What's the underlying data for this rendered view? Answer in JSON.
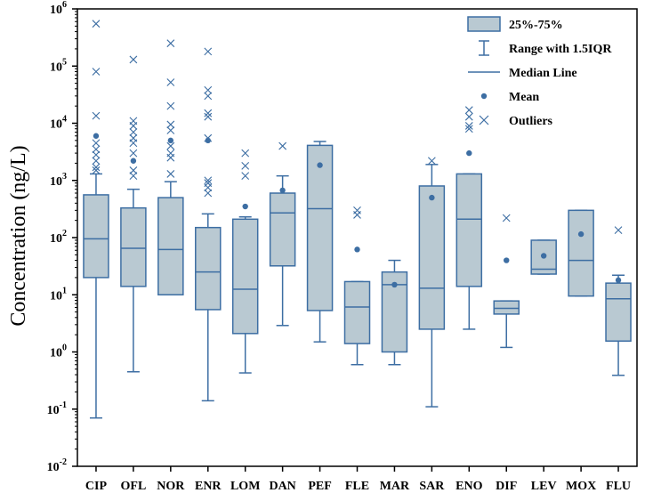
{
  "chart_data": {
    "type": "boxplot",
    "title": "",
    "xlabel": "",
    "ylabel": "Concentration (ng/L)",
    "yscale": "log",
    "ylim": [
      0.01,
      1000000
    ],
    "ytick_base": "10",
    "ytick_exponents": [
      "-2",
      "-1",
      "0",
      "1",
      "2",
      "3",
      "4",
      "5",
      "6"
    ],
    "categories": [
      "CIP",
      "OFL",
      "NOR",
      "ENR",
      "LOM",
      "DAN",
      "PEF",
      "FLE",
      "MAR",
      "SAR",
      "ENO",
      "DIF",
      "LEV",
      "MOX",
      "FLU"
    ],
    "boxes": [
      {
        "name": "CIP",
        "q1": 20,
        "median": 95,
        "q3": 560,
        "whisker_low": 0.07,
        "whisker_high": 1300,
        "mean": 6000,
        "outliers": [
          550000,
          80000,
          13500,
          4500,
          3500,
          2800,
          2200,
          1700,
          1500
        ]
      },
      {
        "name": "OFL",
        "q1": 14,
        "median": 65,
        "q3": 330,
        "whisker_low": 0.45,
        "whisker_high": 700,
        "mean": 2200,
        "outliers": [
          130000,
          11000,
          9000,
          7000,
          5500,
          4500,
          3000,
          1500,
          1200
        ]
      },
      {
        "name": "NOR",
        "q1": 10,
        "median": 62,
        "q3": 500,
        "whisker_low": 10,
        "whisker_high": 950,
        "mean": 5000,
        "outliers": [
          250000,
          52000,
          20000,
          9500,
          7500,
          4000,
          3000,
          2500,
          1300
        ]
      },
      {
        "name": "ENR",
        "q1": 5.5,
        "median": 25,
        "q3": 150,
        "whisker_low": 0.14,
        "whisker_high": 260,
        "mean": 5000,
        "outliers": [
          180000,
          38000,
          30000,
          15000,
          13000,
          5500,
          1000,
          900,
          750,
          600
        ]
      },
      {
        "name": "LOM",
        "q1": 2.1,
        "median": 12.5,
        "q3": 210,
        "whisker_low": 0.43,
        "whisker_high": 230,
        "mean": 350,
        "outliers": [
          3000,
          1800,
          1200
        ]
      },
      {
        "name": "DAN",
        "q1": 32,
        "median": 270,
        "q3": 600,
        "whisker_low": 2.9,
        "whisker_high": 1200,
        "mean": 670,
        "outliers": [
          4000
        ]
      },
      {
        "name": "PEF",
        "q1": 5.3,
        "median": 320,
        "q3": 4100,
        "whisker_low": 1.5,
        "whisker_high": 4800,
        "mean": 1850,
        "outliers": []
      },
      {
        "name": "FLE",
        "q1": 1.4,
        "median": 6.1,
        "q3": 17,
        "whisker_low": 0.6,
        "whisker_high": 17,
        "mean": 62,
        "outliers": [
          300,
          250
        ]
      },
      {
        "name": "MAR",
        "q1": 1.0,
        "median": 15,
        "q3": 25,
        "whisker_low": 0.6,
        "whisker_high": 40,
        "mean": 15,
        "outliers": []
      },
      {
        "name": "SAR",
        "q1": 2.5,
        "median": 13,
        "q3": 800,
        "whisker_low": 0.11,
        "whisker_high": 1900,
        "mean": 500,
        "outliers": [
          2200
        ]
      },
      {
        "name": "ENO",
        "q1": 14,
        "median": 210,
        "q3": 1300,
        "whisker_low": 2.5,
        "whisker_high": 1300,
        "mean": 3000,
        "outliers": [
          17000,
          13000,
          9000,
          8000
        ]
      },
      {
        "name": "DIF",
        "q1": 4.6,
        "median": 5.8,
        "q3": 7.8,
        "whisker_low": 1.2,
        "whisker_high": 7.8,
        "mean": 40,
        "outliers": [
          220
        ]
      },
      {
        "name": "LEV",
        "q1": 23,
        "median": 28,
        "q3": 90,
        "whisker_low": 23,
        "whisker_high": 90,
        "mean": 48,
        "outliers": []
      },
      {
        "name": "MOX",
        "q1": 9.5,
        "median": 40,
        "q3": 300,
        "whisker_low": 9.5,
        "whisker_high": 300,
        "mean": 115,
        "outliers": []
      },
      {
        "name": "FLU",
        "q1": 1.55,
        "median": 8.5,
        "q3": 16,
        "whisker_low": 0.39,
        "whisker_high": 22,
        "mean": 18,
        "outliers": [
          135
        ]
      }
    ],
    "legend": {
      "position": "top-right",
      "entries": [
        "25%-75%",
        "Range with 1.5IQR",
        "Median Line",
        "Mean",
        "Outliers"
      ]
    },
    "colors": {
      "box_fill": "#b9c9d2",
      "stroke": "#3d6ea3",
      "axis": "#000000"
    }
  }
}
